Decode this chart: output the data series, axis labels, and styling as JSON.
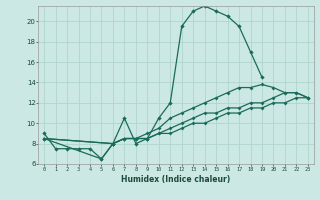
{
  "xlabel": "Humidex (Indice chaleur)",
  "bg_color": "#cce8e4",
  "grid_color": "#b0d4cc",
  "line_color": "#1a6b5a",
  "line1_x": [
    0,
    1,
    2,
    3,
    4,
    5,
    6,
    7,
    8,
    9,
    10,
    11,
    12,
    13,
    14,
    15,
    16,
    17,
    18,
    19
  ],
  "line1_y": [
    9,
    7.5,
    7.5,
    7.5,
    7.5,
    6.5,
    8,
    10.5,
    8,
    8.5,
    10.5,
    12,
    19.5,
    21,
    21.5,
    21,
    20.5,
    19.5,
    17,
    14.5
  ],
  "line2_x": [
    0,
    5,
    6,
    7,
    8,
    9,
    10,
    11,
    12,
    13,
    14,
    15,
    16,
    17,
    18,
    19,
    20,
    21,
    22,
    23
  ],
  "line2_y": [
    8.5,
    6.5,
    8,
    8.5,
    8.5,
    8.5,
    9,
    9,
    9.5,
    10,
    10,
    10.5,
    11,
    11,
    11.5,
    11.5,
    12,
    12,
    12.5,
    12.5
  ],
  "line3_x": [
    0,
    6,
    7,
    8,
    9,
    10,
    11,
    12,
    13,
    14,
    15,
    16,
    17,
    18,
    19,
    20,
    21,
    22,
    23
  ],
  "line3_y": [
    8.5,
    8,
    8.5,
    8.5,
    9,
    9.5,
    10.5,
    11,
    11.5,
    12,
    12.5,
    13,
    13.5,
    13.5,
    13.8,
    13.5,
    13,
    13,
    12.5
  ],
  "line4_x": [
    0,
    6,
    7,
    8,
    9,
    10,
    11,
    12,
    13,
    14,
    15,
    16,
    17,
    18,
    19,
    20,
    21,
    22,
    23
  ],
  "line4_y": [
    8.5,
    8,
    8.5,
    8.5,
    8.5,
    9,
    9.5,
    10,
    10.5,
    11,
    11,
    11.5,
    11.5,
    12,
    12,
    12.5,
    13,
    13,
    12.5
  ],
  "ylim": [
    6,
    21.5
  ],
  "xlim": [
    -0.5,
    23.5
  ],
  "yticks": [
    6,
    8,
    10,
    12,
    14,
    16,
    18,
    20
  ],
  "xticks": [
    0,
    1,
    2,
    3,
    4,
    5,
    6,
    7,
    8,
    9,
    10,
    11,
    12,
    13,
    14,
    15,
    16,
    17,
    18,
    19,
    20,
    21,
    22,
    23
  ]
}
